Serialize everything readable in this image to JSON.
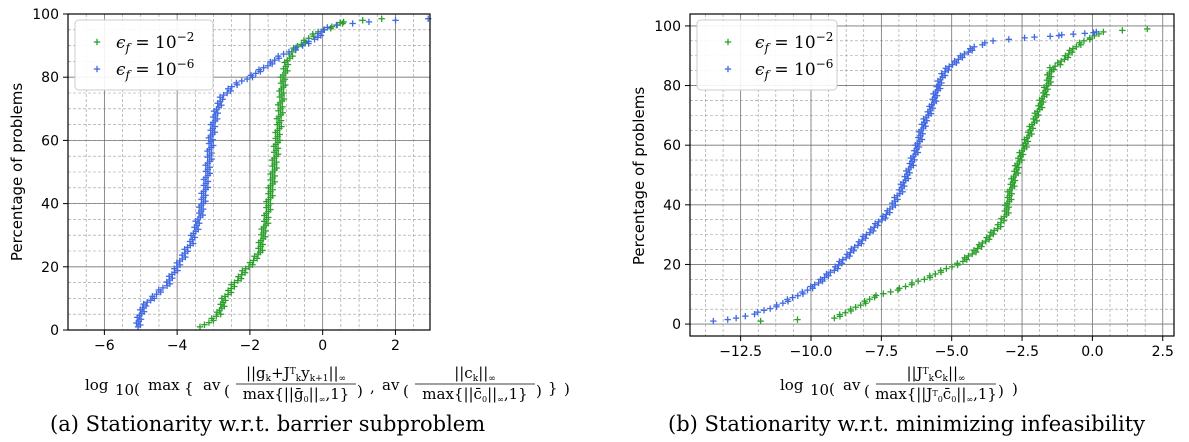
{
  "colors": {
    "green": "#2ca02c",
    "blue": "#4169e1"
  },
  "chart_data": [
    {
      "id": "a",
      "type": "scatter",
      "caption": "(a) Stationarity w.r.t. barrier subproblem",
      "xlabel": "log10 ( max { av ( ||g_k + J_k^T y_k+1||∞ / max{||ḡ_0||∞,1} ) , av ( ||c_k||∞ / max{||c̄_0||∞,1} ) } )",
      "ylabel": "Percentage of problems",
      "xlim": [
        -7.0,
        2.95
      ],
      "ylim": [
        0,
        100
      ],
      "xticks": [
        -6,
        -4,
        -2,
        0,
        2
      ],
      "xtick_labels": [
        "−6",
        "−4",
        "−2",
        "0",
        "2"
      ],
      "yticks": [
        0,
        20,
        40,
        60,
        80,
        100
      ],
      "ytick_labels": [
        "0",
        "20",
        "40",
        "60",
        "80",
        "100"
      ],
      "grid": true,
      "legend_position": "top-left",
      "series": [
        {
          "name": "ε_f = 10^-2",
          "color": "#2ca02c",
          "x": [
            -3.3,
            -2.85,
            -2.7,
            -2.4,
            -2.05,
            -1.75,
            -1.55,
            -1.35,
            -1.2,
            -1.12,
            -1.08,
            -1.0,
            -0.85,
            -0.55,
            -0.3,
            0.0,
            0.3,
            0.5,
            0.6,
            1.55
          ],
          "y": [
            1,
            5,
            10,
            15,
            20,
            24,
            35,
            50,
            65,
            75,
            80,
            84,
            88,
            91,
            93,
            95,
            96,
            97,
            97.5,
            98.5
          ]
        },
        {
          "name": "ε_f = 10^-6",
          "color": "#4169e1",
          "x": [
            -5.1,
            -4.95,
            -4.7,
            -4.3,
            -4.0,
            -3.6,
            -3.35,
            -3.2,
            -3.1,
            -3.05,
            -2.95,
            -2.8,
            -2.5,
            -2.0,
            -1.6,
            -1.25,
            -0.95,
            -0.55,
            -0.2,
            0.0,
            0.4,
            1.2,
            2.9
          ],
          "y": [
            1,
            7,
            10,
            14,
            20,
            28,
            37,
            47,
            56,
            62,
            68,
            73,
            77,
            80,
            83,
            86,
            88,
            90,
            92,
            95,
            96.5,
            97.5,
            98.5
          ]
        }
      ]
    },
    {
      "id": "b",
      "type": "scatter",
      "caption": "(b) Stationarity w.r.t. minimizing infeasibility",
      "xlabel": "log10 ( av ( ||J_k^T c_k||∞ / max{||J_0^T c̄_0||∞,1} ) )",
      "ylabel": "Percentage of problems",
      "xlim": [
        -14.3,
        2.9
      ],
      "ylim": [
        -4,
        104
      ],
      "xticks": [
        -12.5,
        -10.0,
        -7.5,
        -5.0,
        -2.5,
        0.0,
        2.5
      ],
      "xtick_labels": [
        "−12.5",
        "−10.0",
        "−7.5",
        "−5.0",
        "−2.5",
        "0.0",
        "2.5"
      ],
      "yticks": [
        0,
        20,
        40,
        60,
        80,
        100
      ],
      "ytick_labels": [
        "0",
        "20",
        "40",
        "60",
        "80",
        "100"
      ],
      "grid": true,
      "legend_position": "top-left",
      "series": [
        {
          "name": "ε_f = 10^-2",
          "color": "#2ca02c",
          "x": [
            -11.7,
            -9.2,
            -8.5,
            -7.8,
            -6.8,
            -6.0,
            -5.3,
            -4.6,
            -4.0,
            -3.4,
            -3.1,
            -2.9,
            -2.6,
            -2.2,
            -1.9,
            -1.6,
            -1.45,
            -1.2,
            -0.9,
            -0.6,
            -0.3,
            0.0,
            0.3,
            1.95
          ],
          "y": [
            1,
            2,
            5,
            9,
            12,
            15,
            18,
            21,
            26,
            32,
            36,
            45,
            55,
            65,
            72,
            80,
            86,
            87,
            90,
            93,
            95,
            96,
            98,
            99
          ]
        },
        {
          "name": "ε_f = 10^-6",
          "color": "#4169e1",
          "x": [
            -13.5,
            -12.6,
            -11.8,
            -11.0,
            -10.0,
            -9.2,
            -8.6,
            -8.0,
            -7.2,
            -6.8,
            -6.5,
            -6.2,
            -6.0,
            -5.7,
            -5.5,
            -5.3,
            -5.0,
            -4.6,
            -4.2,
            -3.5,
            -2.5,
            -1.5,
            -1.0,
            -0.3,
            0.2
          ],
          "y": [
            1,
            2,
            4,
            7,
            12,
            18,
            24,
            30,
            38,
            45,
            52,
            60,
            67,
            73,
            79,
            84,
            87,
            90,
            93,
            95,
            96,
            96.5,
            97,
            97.5,
            98
          ]
        }
      ]
    }
  ]
}
